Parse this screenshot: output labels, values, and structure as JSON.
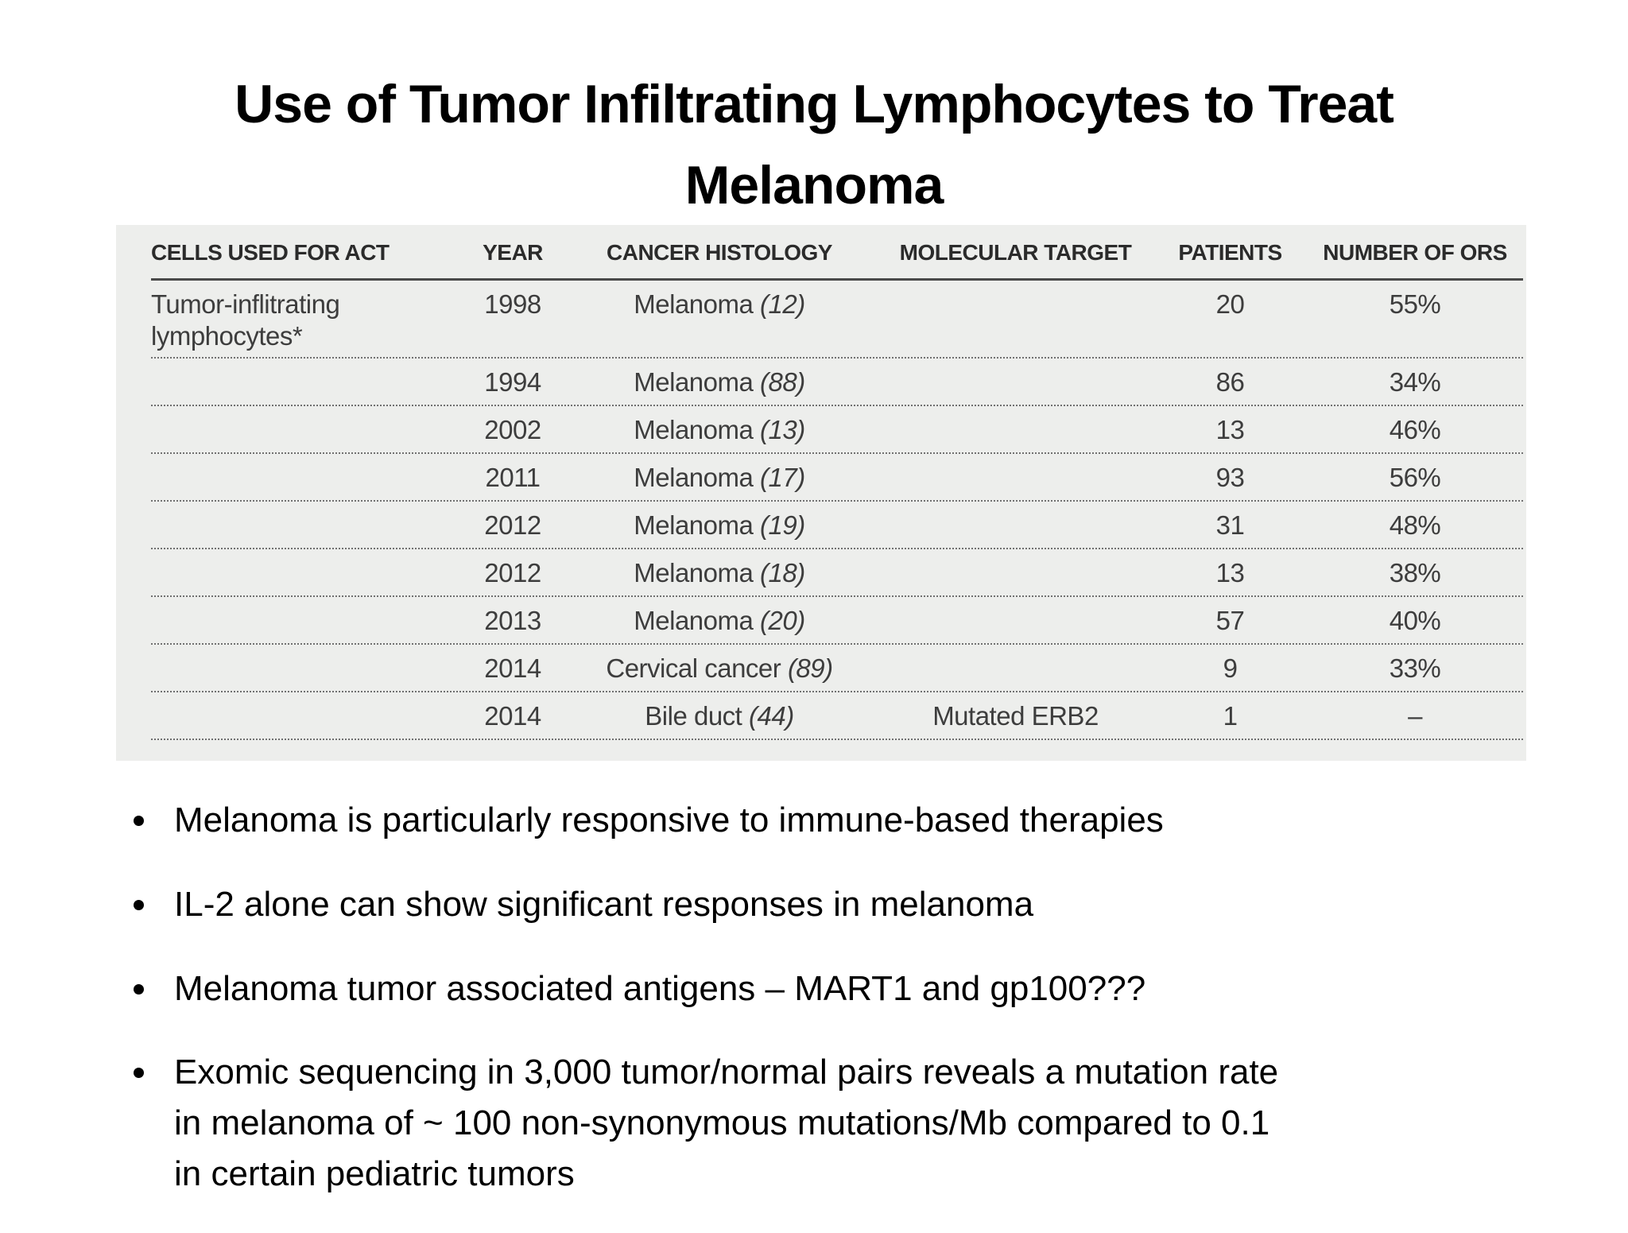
{
  "title": "Use of Tumor Infiltrating Lymphocytes to Treat\nMelanoma",
  "table": {
    "headers": [
      "CELLS USED FOR ACT",
      "YEAR",
      "CANCER HISTOLOGY",
      "MOLECULAR TARGET",
      "PATIENTS",
      "NUMBER OF ORS"
    ],
    "rows": [
      {
        "cells": "Tumor-inflitrating lymphocytes*",
        "year": "1998",
        "histology": "Melanoma",
        "ref": "(12)",
        "target": "",
        "patients": "20",
        "ors": "55%",
        "tall": true
      },
      {
        "cells": "",
        "year": "1994",
        "histology": "Melanoma",
        "ref": "(88)",
        "target": "",
        "patients": "86",
        "ors": "34%"
      },
      {
        "cells": "",
        "year": "2002",
        "histology": "Melanoma",
        "ref": "(13)",
        "target": "",
        "patients": "13",
        "ors": "46%"
      },
      {
        "cells": "",
        "year": "2011",
        "histology": "Melanoma",
        "ref": "(17)",
        "target": "",
        "patients": "93",
        "ors": "56%"
      },
      {
        "cells": "",
        "year": "2012",
        "histology": "Melanoma",
        "ref": "(19)",
        "target": "",
        "patients": "31",
        "ors": "48%"
      },
      {
        "cells": "",
        "year": "2012",
        "histology": "Melanoma",
        "ref": "(18)",
        "target": "",
        "patients": "13",
        "ors": "38%"
      },
      {
        "cells": "",
        "year": "2013",
        "histology": "Melanoma",
        "ref": "(20)",
        "target": "",
        "patients": "57",
        "ors": "40%"
      },
      {
        "cells": "",
        "year": "2014",
        "histology": "Cervical cancer",
        "ref": "(89)",
        "target": "",
        "patients": "9",
        "ors": "33%"
      },
      {
        "cells": "",
        "year": "2014",
        "histology": "Bile duct",
        "ref": "(44)",
        "target": "Mutated ERB2",
        "patients": "1",
        "ors": "–"
      }
    ]
  },
  "bullets": [
    "Melanoma is particularly responsive to immune-based therapies",
    "IL-2 alone can show significant responses in melanoma",
    "Melanoma tumor associated antigens – MART1 and gp100???",
    "Exomic sequencing in 3,000 tumor/normal pairs reveals a mutation rate\nin melanoma of ~ 100 non-synonymous mutations/Mb compared to 0.1\nin certain pediatric tumors"
  ],
  "colors": {
    "panel_bg": "#edeeec",
    "table_text": "#3d3d3d",
    "header_text": "#2b2b2b",
    "header_rule": "#4a4a4a",
    "dotted_rule": "#707070"
  }
}
